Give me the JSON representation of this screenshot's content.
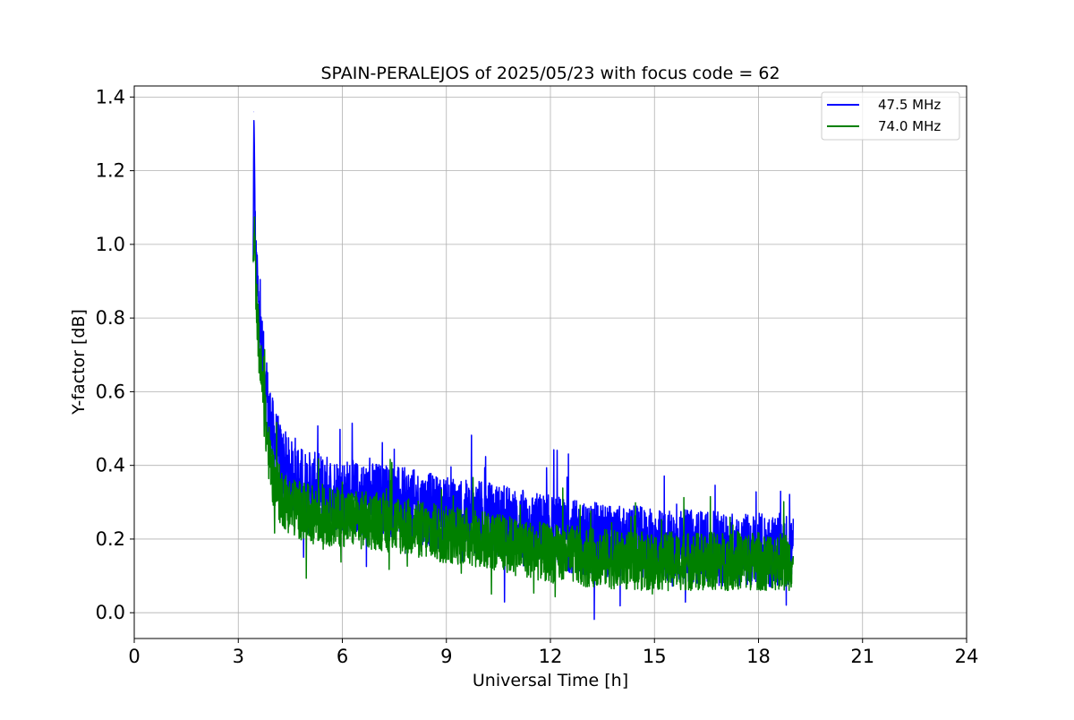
{
  "chart_data": {
    "type": "line",
    "title": "SPAIN-PERALEJOS of 2025/05/23 with focus code = 62",
    "xlabel": "Universal Time [h]",
    "ylabel": "Y-factor [dB]",
    "xlim": [
      0,
      24
    ],
    "ylim": [
      -0.07,
      1.43
    ],
    "xticks": [
      0,
      3,
      6,
      9,
      12,
      15,
      18,
      21,
      24
    ],
    "xtick_labels": [
      "0",
      "3",
      "6",
      "9",
      "12",
      "15",
      "18",
      "21",
      "24"
    ],
    "yticks": [
      0.0,
      0.2,
      0.4,
      0.6,
      0.8,
      1.0,
      1.2,
      1.4
    ],
    "ytick_labels": [
      "0.0",
      "0.2",
      "0.4",
      "0.6",
      "0.8",
      "1.0",
      "1.2",
      "1.4"
    ],
    "grid": true,
    "legend_position": "top-right",
    "series": [
      {
        "name": "47.5 MHz",
        "color": "#0000ff",
        "x": [
          3.43,
          3.45,
          3.48,
          3.5,
          3.55,
          3.6,
          3.7,
          3.8,
          3.9,
          4.0,
          4.2,
          4.5,
          5.0,
          5.5,
          6.0,
          6.5,
          7.0,
          7.5,
          8.0,
          8.5,
          9.0,
          9.5,
          10.0,
          10.5,
          11.0,
          11.5,
          12.0,
          12.5,
          13.0,
          13.5,
          14.0,
          14.5,
          15.0,
          15.5,
          16.0,
          16.5,
          17.0,
          17.5,
          18.0,
          18.5,
          19.0
        ],
        "y": [
          0.95,
          1.36,
          1.1,
          0.98,
          0.9,
          0.8,
          0.7,
          0.6,
          0.53,
          0.48,
          0.42,
          0.37,
          0.34,
          0.33,
          0.32,
          0.31,
          0.31,
          0.3,
          0.29,
          0.28,
          0.27,
          0.26,
          0.26,
          0.25,
          0.24,
          0.23,
          0.22,
          0.21,
          0.2,
          0.2,
          0.19,
          0.19,
          0.18,
          0.18,
          0.18,
          0.18,
          0.17,
          0.17,
          0.17,
          0.17,
          0.17
        ],
        "spread": [
          0.02,
          0.02,
          0.05,
          0.06,
          0.07,
          0.08,
          0.09,
          0.1,
          0.1,
          0.1,
          0.1,
          0.1,
          0.1,
          0.1,
          0.1,
          0.1,
          0.1,
          0.1,
          0.1,
          0.1,
          0.1,
          0.1,
          0.1,
          0.1,
          0.1,
          0.1,
          0.1,
          0.1,
          0.1,
          0.1,
          0.1,
          0.1,
          0.1,
          0.1,
          0.1,
          0.1,
          0.1,
          0.1,
          0.1,
          0.1,
          0.1
        ]
      },
      {
        "name": "74.0 MHz",
        "color": "#008000",
        "x": [
          3.43,
          3.47,
          3.5,
          3.55,
          3.6,
          3.7,
          3.8,
          3.9,
          4.0,
          4.2,
          4.5,
          5.0,
          5.5,
          6.0,
          6.5,
          7.0,
          7.5,
          8.0,
          8.5,
          9.0,
          9.5,
          10.0,
          10.5,
          11.0,
          11.5,
          12.0,
          12.5,
          13.0,
          13.5,
          14.0,
          14.5,
          15.0,
          15.5,
          16.0,
          16.5,
          17.0,
          17.5,
          18.0,
          18.5,
          19.0
        ],
        "y": [
          0.95,
          1.04,
          0.9,
          0.8,
          0.72,
          0.6,
          0.5,
          0.42,
          0.37,
          0.32,
          0.29,
          0.27,
          0.26,
          0.26,
          0.25,
          0.25,
          0.24,
          0.23,
          0.22,
          0.21,
          0.21,
          0.2,
          0.19,
          0.18,
          0.17,
          0.16,
          0.16,
          0.15,
          0.15,
          0.14,
          0.14,
          0.14,
          0.14,
          0.14,
          0.14,
          0.14,
          0.14,
          0.14,
          0.14,
          0.14
        ],
        "spread": [
          0.02,
          0.04,
          0.06,
          0.07,
          0.08,
          0.08,
          0.08,
          0.08,
          0.08,
          0.08,
          0.08,
          0.08,
          0.08,
          0.08,
          0.08,
          0.08,
          0.08,
          0.08,
          0.08,
          0.08,
          0.08,
          0.08,
          0.08,
          0.08,
          0.08,
          0.08,
          0.08,
          0.08,
          0.08,
          0.08,
          0.08,
          0.08,
          0.08,
          0.08,
          0.08,
          0.08,
          0.08,
          0.08,
          0.08,
          0.08
        ]
      }
    ]
  }
}
